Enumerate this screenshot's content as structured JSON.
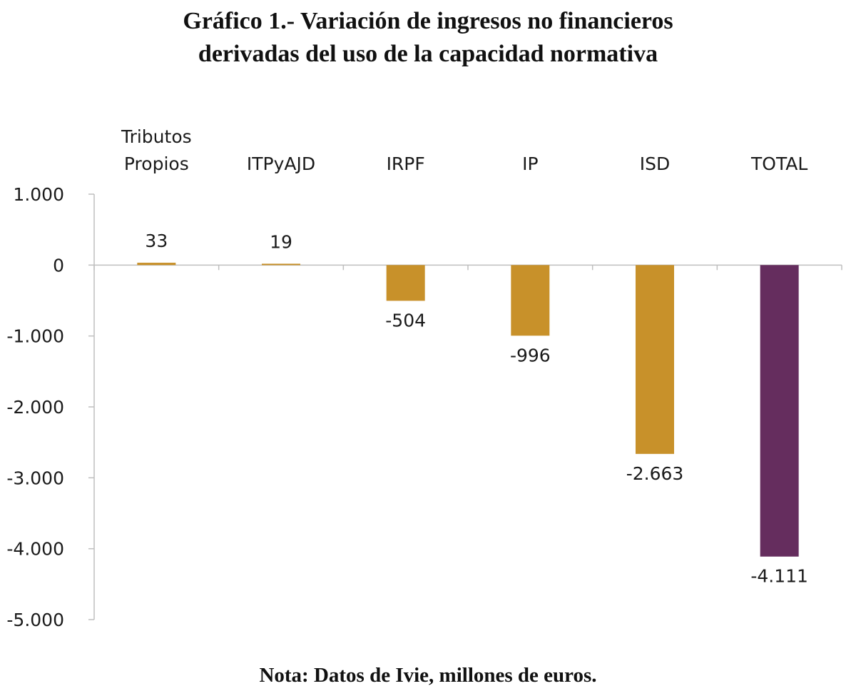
{
  "title": {
    "line1": "Gráfico 1.- Variación de ingresos no financieros",
    "line2": "derivadas del uso de la capacidad normativa"
  },
  "note": "Nota: Datos de Ivie, millones de euros.",
  "colors": {
    "gold": "#C8912A",
    "purple": "#652D5E",
    "axis": "#bfbfbf"
  },
  "chart_data": {
    "type": "bar",
    "title": "Gráfico 1.- Variación de ingresos no financieros derivadas del uso de la capacidad normativa",
    "xlabel": "",
    "ylabel": "",
    "categories": [
      [
        "Tributos",
        "Propios"
      ],
      [
        "ITPyAJD"
      ],
      [
        "IRPF"
      ],
      [
        "IP"
      ],
      [
        "ISD"
      ],
      [
        "TOTAL"
      ]
    ],
    "values": [
      33,
      19,
      -504,
      -996,
      -2663,
      -4111
    ],
    "value_labels": [
      "33",
      "19",
      "-504",
      "-996",
      "-2.663",
      "-4.111"
    ],
    "bar_colors": [
      "#C8912A",
      "#C8912A",
      "#C8912A",
      "#C8912A",
      "#C8912A",
      "#652D5E"
    ],
    "ylim": [
      -5000,
      1000
    ],
    "yticks": [
      1000,
      0,
      -1000,
      -2000,
      -3000,
      -4000,
      -5000
    ],
    "ytick_labels": [
      "1.000",
      "0",
      "-1.000",
      "-2.000",
      "-3.000",
      "-4.000",
      "-5.000"
    ],
    "category_axis_position": "top",
    "grid": false,
    "legend": "none"
  }
}
